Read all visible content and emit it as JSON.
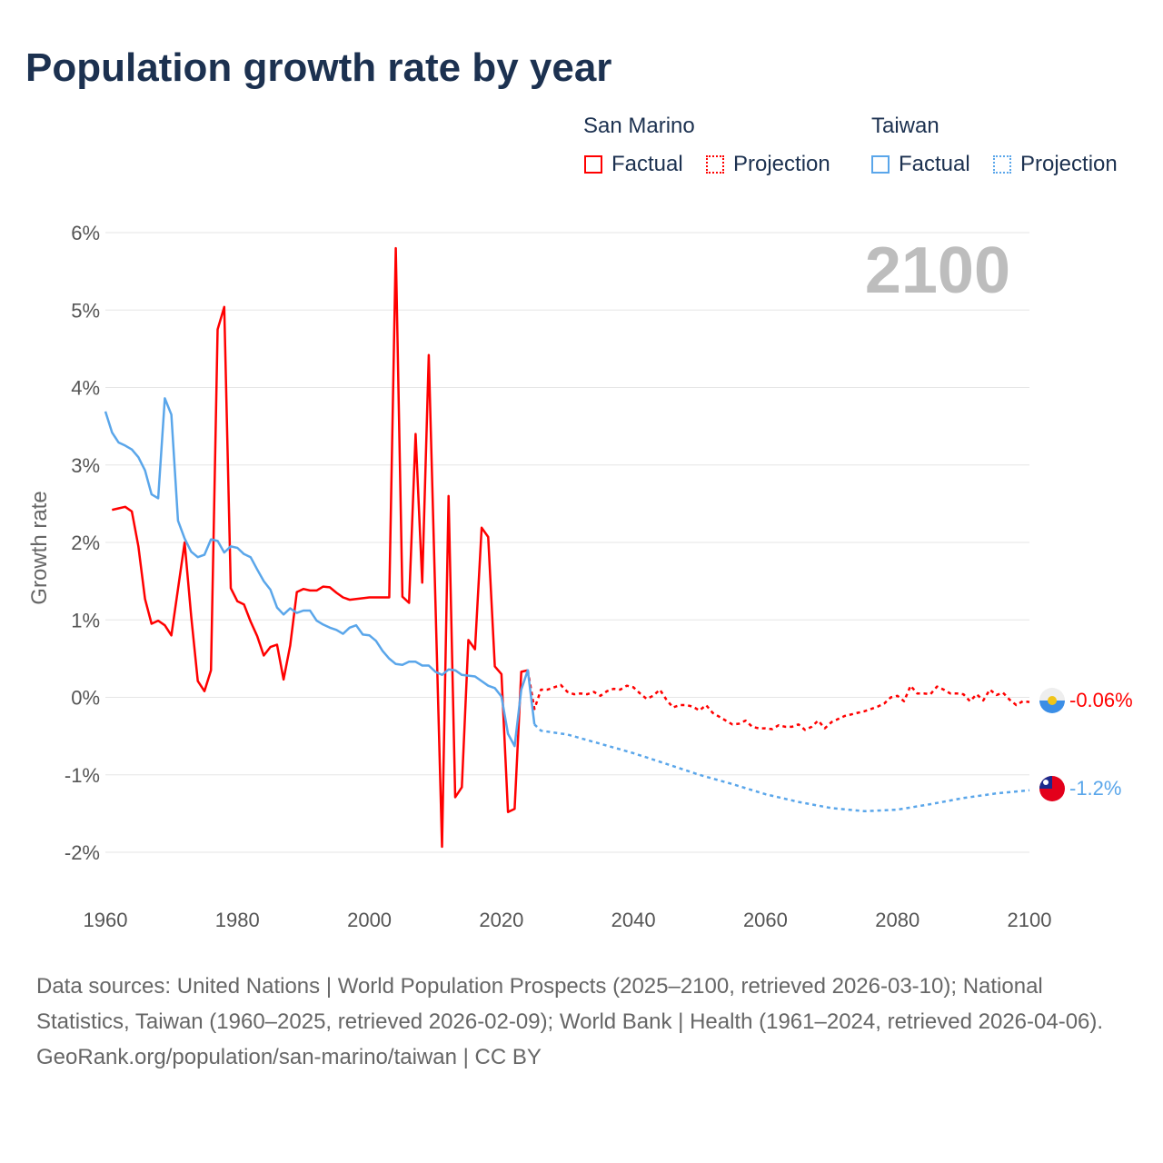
{
  "title": "Population growth rate by year",
  "legend": {
    "groups": [
      {
        "name": "San Marino",
        "color": "#ff0000",
        "factual": "Factual",
        "projection": "Projection"
      },
      {
        "name": "Taiwan",
        "color": "#5aa6ea",
        "factual": "Factual",
        "projection": "Projection"
      }
    ]
  },
  "year_label": "2100",
  "end_labels": {
    "san_marino": "-0.06%",
    "taiwan": "-1.2%"
  },
  "footer": {
    "sources": "Data sources: United Nations | World Population Prospects (2025–2100, retrieved 2026-03-10); National Statistics, Taiwan (1960–2025, retrieved 2026-02-09); World Bank | Health (1961–2024, retrieved 2026-04-06).",
    "credit": "GeoRank.org/population/san-marino/taiwan | CC BY"
  },
  "chart_data": {
    "type": "line",
    "title": "Population growth rate by year",
    "xlabel": "",
    "ylabel": "Growth rate",
    "xlim": [
      1960,
      2100
    ],
    "ylim": [
      -2,
      6
    ],
    "xticks": [
      1960,
      1980,
      2000,
      2020,
      2040,
      2060,
      2080,
      2100
    ],
    "xtick_labels": [
      "1960",
      "1980",
      "2000",
      "2020",
      "2040",
      "2060",
      "2080",
      "2100"
    ],
    "yticks": [
      -2,
      -1,
      0,
      1,
      2,
      3,
      4,
      5,
      6
    ],
    "ytick_labels": [
      "-2%",
      "-1%",
      "0%",
      "1%",
      "2%",
      "3%",
      "4%",
      "5%",
      "6%"
    ],
    "grid": true,
    "legend_position": "top-right",
    "series": [
      {
        "name": "San Marino Factual",
        "color": "#ff0000",
        "style": "solid",
        "start": 1961,
        "values": [
          2.42,
          2.44,
          2.46,
          2.4,
          1.95,
          1.27,
          0.95,
          0.99,
          0.93,
          0.8,
          1.4,
          2.0,
          1.05,
          0.21,
          0.08,
          0.35,
          4.75,
          5.04,
          1.41,
          1.24,
          1.2,
          0.98,
          0.79,
          0.54,
          0.65,
          0.68,
          0.23,
          0.67,
          1.36,
          1.4,
          1.38,
          1.38,
          1.43,
          1.42,
          1.35,
          1.29,
          1.26,
          1.27,
          1.28,
          1.29,
          1.29,
          1.29,
          1.29,
          5.8,
          1.3,
          1.22,
          3.4,
          1.48,
          4.42,
          1.25,
          -1.93,
          2.6,
          -1.29,
          -1.16,
          0.74,
          0.62,
          2.19,
          2.07,
          0.4,
          0.3,
          -1.48,
          -1.44,
          0.33,
          0.35
        ]
      },
      {
        "name": "San Marino Projection",
        "color": "#ff0000",
        "style": "dotted",
        "start": 2024,
        "values": [
          0.35,
          -0.15,
          0.1,
          0.1,
          0.13,
          0.16,
          0.07,
          0.04,
          0.05,
          0.04,
          0.07,
          0.02,
          0.08,
          0.11,
          0.1,
          0.15,
          0.13,
          0.05,
          -0.02,
          0.02,
          0.1,
          -0.03,
          -0.13,
          -0.1,
          -0.1,
          -0.12,
          -0.17,
          -0.1,
          -0.2,
          -0.25,
          -0.3,
          -0.35,
          -0.34,
          -0.3,
          -0.38,
          -0.4,
          -0.4,
          -0.41,
          -0.36,
          -0.38,
          -0.38,
          -0.35,
          -0.42,
          -0.38,
          -0.3,
          -0.4,
          -0.32,
          -0.28,
          -0.24,
          -0.22,
          -0.2,
          -0.18,
          -0.15,
          -0.12,
          -0.08,
          0.0,
          0.02,
          -0.05,
          0.15,
          0.05,
          0.05,
          0.04,
          0.14,
          0.1,
          0.05,
          0.05,
          0.04,
          -0.05,
          0.04,
          -0.04,
          0.1,
          0.03,
          0.06,
          -0.03,
          -0.1,
          -0.05,
          -0.06
        ]
      },
      {
        "name": "Taiwan Factual",
        "color": "#5aa6ea",
        "style": "solid",
        "start": 1960,
        "values": [
          3.69,
          3.42,
          3.29,
          3.25,
          3.2,
          3.1,
          2.93,
          2.62,
          2.57,
          3.86,
          3.65,
          2.28,
          2.05,
          1.88,
          1.81,
          1.84,
          2.04,
          2.02,
          1.87,
          1.95,
          1.93,
          1.85,
          1.81,
          1.65,
          1.5,
          1.39,
          1.16,
          1.07,
          1.15,
          1.09,
          1.12,
          1.12,
          0.99,
          0.94,
          0.9,
          0.87,
          0.82,
          0.9,
          0.93,
          0.81,
          0.8,
          0.73,
          0.6,
          0.5,
          0.43,
          0.42,
          0.46,
          0.46,
          0.41,
          0.41,
          0.33,
          0.29,
          0.36,
          0.35,
          0.29,
          0.28,
          0.27,
          0.21,
          0.15,
          0.12,
          0.01,
          -0.47,
          -0.63,
          0.1,
          0.35,
          -0.35
        ]
      },
      {
        "name": "Taiwan Projection",
        "color": "#5aa6ea",
        "style": "dotted",
        "x": [
          2025,
          2026,
          2030,
          2035,
          2040,
          2045,
          2050,
          2055,
          2060,
          2065,
          2070,
          2075,
          2080,
          2085,
          2090,
          2095,
          2100
        ],
        "values": [
          -0.35,
          -0.43,
          -0.48,
          -0.6,
          -0.72,
          -0.86,
          -1.0,
          -1.12,
          -1.25,
          -1.35,
          -1.43,
          -1.47,
          -1.45,
          -1.38,
          -1.3,
          -1.24,
          -1.2
        ]
      }
    ]
  }
}
